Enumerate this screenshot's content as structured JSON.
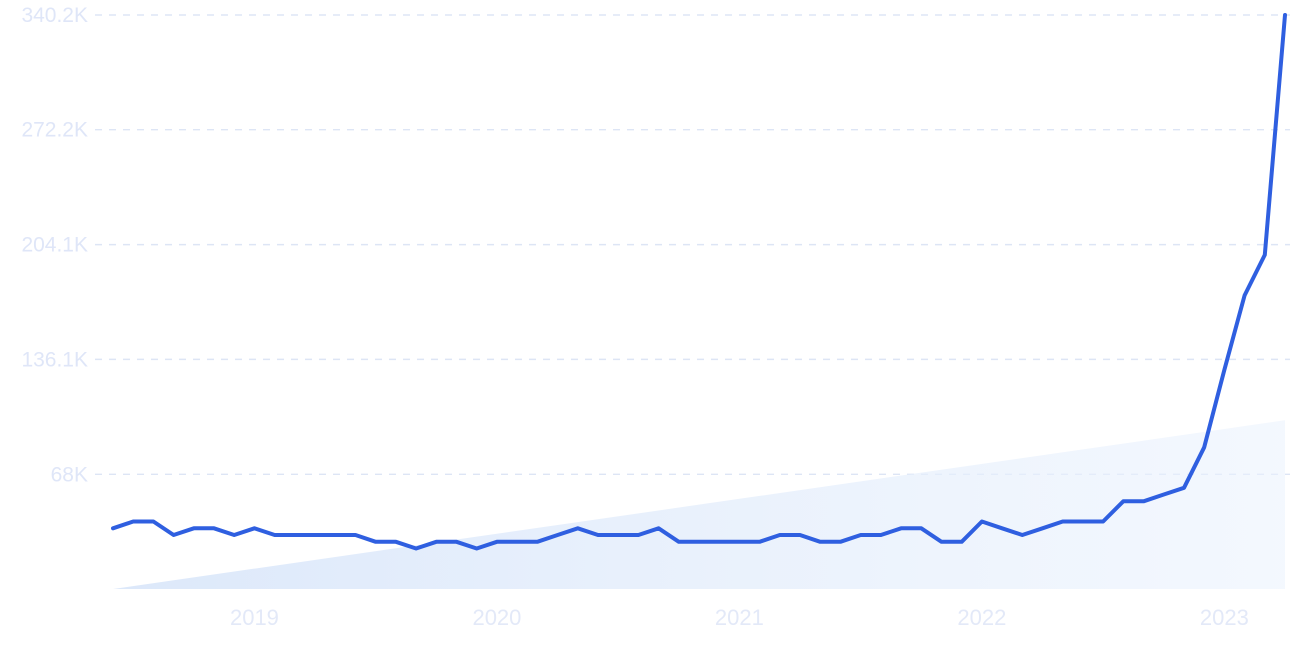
{
  "chart_data": {
    "type": "line",
    "title": "",
    "xlabel": "",
    "ylabel": "",
    "ylim": [
      0,
      340200
    ],
    "y_ticks": [
      {
        "value": 68000,
        "label": "68K"
      },
      {
        "value": 136100,
        "label": "136.1K"
      },
      {
        "value": 204100,
        "label": "204.1K"
      },
      {
        "value": 272200,
        "label": "272.2K"
      },
      {
        "value": 340200,
        "label": "340.2K"
      }
    ],
    "x_ticks": [
      {
        "value": "2019-01",
        "label": "2019"
      },
      {
        "value": "2020-01",
        "label": "2020"
      },
      {
        "value": "2021-01",
        "label": "2021"
      },
      {
        "value": "2022-01",
        "label": "2022"
      },
      {
        "value": "2023-01",
        "label": "2023"
      }
    ],
    "grid": true,
    "legend": "none",
    "colors": {
      "line": "#2f5fe0",
      "trend_fill": "#dce8fa",
      "grid": "#dde5f5",
      "tick_text": "#dfe6f8"
    },
    "series": [
      {
        "x": [
          "2018-06",
          "2018-07",
          "2018-08",
          "2018-09",
          "2018-10",
          "2018-11",
          "2018-12",
          "2019-01",
          "2019-02",
          "2019-03",
          "2019-04",
          "2019-05",
          "2019-06",
          "2019-07",
          "2019-08",
          "2019-09",
          "2019-10",
          "2019-11",
          "2019-12",
          "2020-01",
          "2020-02",
          "2020-03",
          "2020-04",
          "2020-05",
          "2020-06",
          "2020-07",
          "2020-08",
          "2020-09",
          "2020-10",
          "2020-11",
          "2020-12",
          "2021-01",
          "2021-02",
          "2021-03",
          "2021-04",
          "2021-05",
          "2021-06",
          "2021-07",
          "2021-08",
          "2021-09",
          "2021-10",
          "2021-11",
          "2021-12",
          "2022-01",
          "2022-02",
          "2022-03",
          "2022-04",
          "2022-05",
          "2022-06",
          "2022-07",
          "2022-08",
          "2022-09",
          "2022-10",
          "2022-11",
          "2022-12",
          "2023-01",
          "2023-02",
          "2023-03",
          "2023-04"
        ],
        "values": [
          36000,
          40000,
          40000,
          32000,
          36000,
          36000,
          32000,
          36000,
          32000,
          32000,
          32000,
          32000,
          32000,
          28000,
          28000,
          24000,
          28000,
          28000,
          24000,
          28000,
          28000,
          28000,
          32000,
          36000,
          32000,
          32000,
          32000,
          36000,
          28000,
          28000,
          28000,
          28000,
          28000,
          32000,
          32000,
          28000,
          28000,
          32000,
          32000,
          36000,
          36000,
          28000,
          28000,
          40000,
          36000,
          32000,
          36000,
          40000,
          40000,
          40000,
          52000,
          52000,
          56000,
          60000,
          84000,
          130000,
          174000,
          198000,
          340200
        ]
      }
    ],
    "trend": {
      "start": {
        "x": "2018-06",
        "y": 0
      },
      "end": {
        "x": "2023-04",
        "y": 100000
      }
    }
  }
}
